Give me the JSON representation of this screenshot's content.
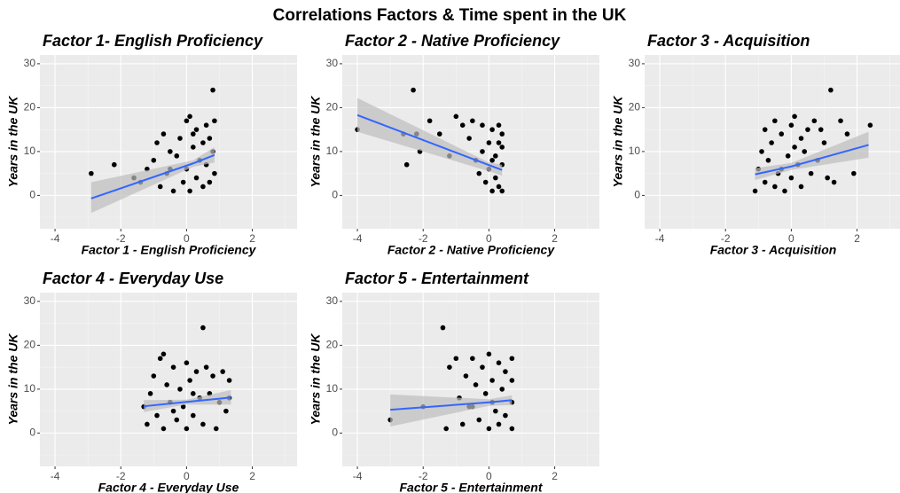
{
  "title": "Correlations Factors & Time spent in the UK",
  "chart_data": [
    {
      "type": "scatter",
      "title": "Factor 1- English Proficiency",
      "xlabel": "Factor 1 - English Proficiency",
      "ylabel": "Years in the UK",
      "xlim": [
        -4.46,
        3.36
      ],
      "ylim": [
        -7.6,
        32
      ],
      "xticks": [
        -4,
        -2,
        0,
        2
      ],
      "yticks": [
        0,
        10,
        20,
        30
      ],
      "x_minor": [
        -3,
        -1,
        1,
        3
      ],
      "y_minor": [
        -5,
        5,
        15,
        25
      ],
      "grid": true,
      "point_color": "#000000",
      "x": [
        -2.9,
        -2.2,
        -1.6,
        -1.4,
        -1.2,
        -1,
        -0.9,
        -0.8,
        -0.7,
        -0.6,
        -0.5,
        -0.4,
        -0.3,
        -0.2,
        -0.1,
        0,
        0,
        0.1,
        0.1,
        0.2,
        0.3,
        0.3,
        0.4,
        0.5,
        0.5,
        0.6,
        0.6,
        0.7,
        0.7,
        0.8,
        0.8,
        0.85,
        0.85,
        -0.5,
        0.2
      ],
      "y": [
        5,
        7,
        4,
        3,
        6,
        8,
        12,
        2,
        14,
        5,
        10,
        1,
        9,
        13,
        3,
        17,
        6,
        18,
        1,
        11,
        15,
        4,
        8,
        12,
        2,
        16,
        7,
        13,
        3,
        10,
        24,
        17,
        5,
        6,
        14
      ],
      "fit": {
        "color": "#3366ff",
        "band_color": "#bdbdbd",
        "x": [
          -2.9,
          0.2,
          0.85
        ],
        "y": [
          -0.7,
          7.3,
          9.2
        ],
        "lower": [
          -4,
          6.5,
          7.5
        ],
        "upper": [
          3,
          8,
          11
        ]
      }
    },
    {
      "type": "scatter",
      "title": "Factor 2 - Native Proficiency",
      "xlabel": "Factor 2 - Native Proficiency",
      "ylabel": "Years in the UK",
      "xlim": [
        -4.46,
        3.36
      ],
      "ylim": [
        -7.6,
        32
      ],
      "xticks": [
        -4,
        -2,
        0,
        2
      ],
      "yticks": [
        0,
        10,
        20,
        30
      ],
      "x_minor": [
        -3,
        -1,
        1,
        3
      ],
      "y_minor": [
        -5,
        5,
        15,
        25
      ],
      "grid": true,
      "point_color": "#000000",
      "x": [
        -4,
        -2.3,
        -2.2,
        -2.1,
        -2.5,
        -2.6,
        -1.8,
        -1.5,
        -1.2,
        -1,
        -0.8,
        -0.6,
        -0.5,
        -0.4,
        -0.3,
        -0.2,
        -0.1,
        0,
        0,
        0.1,
        0.1,
        0.2,
        0.2,
        0.3,
        0.3,
        0.4,
        0.4,
        0.4,
        0.4,
        -0.2,
        0.1,
        0.3
      ],
      "y": [
        15,
        24,
        14,
        10,
        7,
        14,
        17,
        14,
        9,
        18,
        16,
        13,
        17,
        8,
        5,
        16,
        3,
        12,
        6,
        1,
        15,
        9,
        4,
        16,
        2,
        14,
        7,
        1,
        11,
        10,
        8,
        12
      ],
      "fit": {
        "color": "#3366ff",
        "band_color": "#bdbdbd",
        "x": [
          -4,
          0,
          0.4
        ],
        "y": [
          18.3,
          6.9,
          5.8
        ],
        "lower": [
          14.5,
          5.5,
          4.5
        ],
        "upper": [
          22.2,
          7.5,
          7
        ]
      }
    },
    {
      "type": "scatter",
      "title": "Factor 3 - Acquisition",
      "xlabel": "Factor 3 - Acquisition",
      "ylabel": "Years in the UK",
      "xlim": [
        -4.46,
        3.36
      ],
      "ylim": [
        -7.6,
        32
      ],
      "xticks": [
        -4,
        -2,
        0,
        2
      ],
      "yticks": [
        0,
        10,
        20,
        30
      ],
      "x_minor": [
        -3,
        -1,
        1,
        3
      ],
      "y_minor": [
        -5,
        5,
        15,
        25
      ],
      "grid": true,
      "point_color": "#000000",
      "x": [
        -1.1,
        -1,
        -0.9,
        -0.8,
        -0.8,
        -0.7,
        -0.6,
        -0.5,
        -0.5,
        -0.4,
        -0.3,
        -0.2,
        -0.1,
        0,
        0,
        0.1,
        0.2,
        0.3,
        0.3,
        0.4,
        0.5,
        0.6,
        0.7,
        0.8,
        0.9,
        1,
        1.1,
        1.2,
        1.3,
        1.5,
        1.7,
        1.9,
        2.4,
        -0.3,
        0.1
      ],
      "y": [
        1,
        6,
        10,
        3,
        15,
        8,
        12,
        2,
        17,
        5,
        14,
        1,
        9,
        16,
        4,
        18,
        7,
        2,
        13,
        10,
        15,
        5,
        17,
        8,
        15,
        12,
        4,
        24,
        3,
        17,
        14,
        5,
        16,
        6,
        11
      ],
      "fit": {
        "color": "#3366ff",
        "band_color": "#bdbdbd",
        "x": [
          -1.1,
          0,
          2.35
        ],
        "y": [
          4.8,
          6.6,
          11.5
        ],
        "lower": [
          3.5,
          5.8,
          8.6
        ],
        "upper": [
          6.2,
          7.4,
          14.5
        ]
      }
    },
    {
      "type": "scatter",
      "title": "Factor 4 - Everyday Use",
      "xlabel": "Factor 4 - Everyday Use",
      "ylabel": "Years in the UK",
      "xlim": [
        -4.46,
        3.36
      ],
      "ylim": [
        -7.6,
        32
      ],
      "xticks": [
        -4,
        -2,
        0,
        2
      ],
      "yticks": [
        0,
        10,
        20,
        30
      ],
      "x_minor": [
        -3,
        -1,
        1,
        3
      ],
      "y_minor": [
        -5,
        5,
        15,
        25
      ],
      "grid": true,
      "point_color": "#000000",
      "x": [
        -1.3,
        -1.2,
        -1.1,
        -1,
        -0.9,
        -0.8,
        -0.7,
        -0.7,
        -0.6,
        -0.5,
        -0.4,
        -0.3,
        -0.2,
        -0.1,
        0,
        0,
        0.1,
        0.2,
        0.3,
        0.4,
        0.5,
        0.5,
        0.6,
        0.7,
        0.8,
        0.9,
        1,
        1.1,
        1.2,
        1.3,
        1.3,
        -0.4,
        0.2
      ],
      "y": [
        6,
        2,
        9,
        13,
        4,
        17,
        1,
        18,
        11,
        7,
        15,
        3,
        10,
        6,
        16,
        1,
        12,
        4,
        14,
        8,
        24,
        2,
        15,
        9,
        13,
        1,
        7,
        14,
        5,
        12,
        8,
        5,
        9
      ],
      "fit": {
        "color": "#3366ff",
        "band_color": "#bdbdbd",
        "x": [
          -1.3,
          0,
          1.35
        ],
        "y": [
          6.1,
          7.1,
          8.1
        ],
        "lower": [
          4.8,
          6.5,
          6.5
        ],
        "upper": [
          7.5,
          7.6,
          9.8
        ]
      }
    },
    {
      "type": "scatter",
      "title": "Factor 5 - Entertainment",
      "xlabel": "Factor 5 - Entertainment",
      "ylabel": "Years in the UK",
      "xlim": [
        -4.46,
        3.36
      ],
      "ylim": [
        -7.6,
        32
      ],
      "xticks": [
        -4,
        -2,
        0,
        2
      ],
      "yticks": [
        0,
        10,
        20,
        30
      ],
      "x_minor": [
        -3,
        -1,
        1,
        3
      ],
      "y_minor": [
        -5,
        5,
        15,
        25
      ],
      "grid": true,
      "point_color": "#000000",
      "x": [
        -3,
        -2,
        -1.4,
        -1.3,
        -1.2,
        -1,
        -0.9,
        -0.8,
        -0.7,
        -0.6,
        -0.5,
        -0.4,
        -0.3,
        -0.2,
        -0.1,
        0,
        0,
        0.1,
        0.2,
        0.3,
        0.3,
        0.4,
        0.5,
        0.5,
        0.7,
        0.7,
        0.7,
        0.7,
        -0.5,
        0.1
      ],
      "y": [
        3,
        6,
        24,
        1,
        15,
        17,
        8,
        2,
        13,
        6,
        17,
        11,
        3,
        15,
        9,
        18,
        1,
        12,
        5,
        16,
        2,
        10,
        14,
        4,
        17,
        7,
        1,
        12,
        6,
        7
      ],
      "fit": {
        "color": "#3366ff",
        "band_color": "#bdbdbd",
        "x": [
          -3,
          0,
          0.7
        ],
        "y": [
          5.3,
          7,
          7.5
        ],
        "lower": [
          1.5,
          6.2,
          6.4
        ],
        "upper": [
          8.8,
          7.7,
          8.6
        ]
      }
    }
  ]
}
